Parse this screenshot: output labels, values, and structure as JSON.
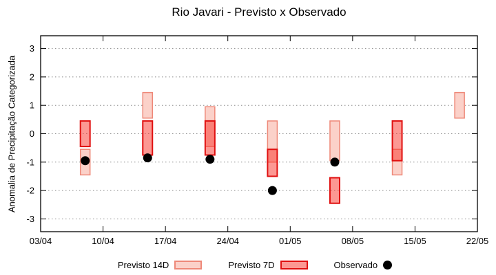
{
  "title": "Rio Javari - Previsto x Observado",
  "chart_data": {
    "type": "range-bar",
    "title": "Rio Javari - Previsto x Observado",
    "ylabel": "Anomalia de Precipitação Categorizada",
    "ylim": [
      -3.45,
      3.45
    ],
    "yticks": [
      3,
      2,
      1,
      0,
      -1,
      -2,
      -3
    ],
    "xticks": [
      {
        "label": "03/04",
        "day": 0
      },
      {
        "label": "10/04",
        "day": 7
      },
      {
        "label": "17/04",
        "day": 14
      },
      {
        "label": "24/04",
        "day": 21
      },
      {
        "label": "01/05",
        "day": 28
      },
      {
        "label": "08/05",
        "day": 35
      },
      {
        "label": "15/05",
        "day": 42
      },
      {
        "label": "22/05",
        "day": 49
      }
    ],
    "x_day_range": [
      0,
      49
    ],
    "grid": "horizontal-dotted",
    "legend_position": "below",
    "series": [
      {
        "name": "Previsto 14D",
        "type": "range",
        "fill": "#fbd1c9",
        "border": "#ee8878"
      },
      {
        "name": "Previsto 7D",
        "type": "range",
        "fill": "rgba(250,50,40,0.5)",
        "border": "#e01010"
      },
      {
        "name": "Observado",
        "type": "point",
        "color": "#000000"
      }
    ],
    "points": [
      {
        "date": "08/04",
        "day": 5,
        "previsto14": [
          -1.45,
          -0.55
        ],
        "previsto7": [
          -0.45,
          0.45
        ],
        "observado": -0.95
      },
      {
        "date": "15/04",
        "day": 12,
        "previsto14": [
          0.55,
          1.45
        ],
        "previsto7": [
          -0.75,
          0.45
        ],
        "observado": -0.85
      },
      {
        "date": "22/04",
        "day": 19,
        "previsto14": [
          -0.45,
          0.95
        ],
        "previsto7": [
          -0.75,
          0.45
        ],
        "observado": -0.9
      },
      {
        "date": "29/04",
        "day": 26,
        "previsto14": [
          -1.0,
          0.45
        ],
        "previsto7": [
          -1.5,
          -0.55
        ],
        "observado": -2.0
      },
      {
        "date": "06/05",
        "day": 33,
        "previsto14": [
          -0.95,
          0.45
        ],
        "previsto7": [
          -2.45,
          -1.55
        ],
        "observado": -1.0
      },
      {
        "date": "13/05",
        "day": 40,
        "previsto14": [
          -1.45,
          -0.55
        ],
        "previsto7": [
          -0.95,
          0.45
        ],
        "observado": null
      },
      {
        "date": "20/05",
        "day": 47,
        "previsto14": [
          0.55,
          1.45
        ],
        "previsto7": null,
        "observado": null
      }
    ],
    "colors": {
      "frame": "#000000",
      "grid": "#8a8a8a",
      "background": "#ffffff"
    }
  }
}
